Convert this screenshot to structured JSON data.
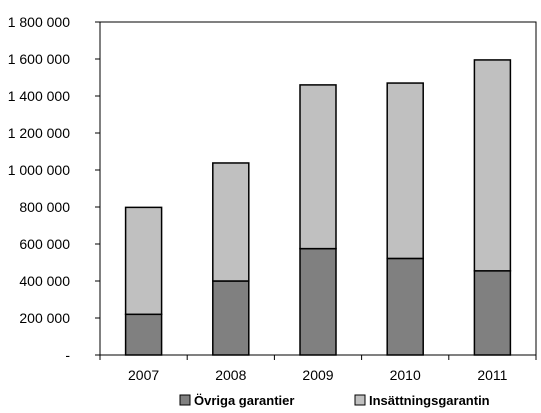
{
  "chart_data": {
    "type": "bar",
    "stacked": true,
    "categories": [
      "2007",
      "2008",
      "2009",
      "2010",
      "2011"
    ],
    "series": [
      {
        "name": "Övriga garantier",
        "values": [
          220000,
          400000,
          575000,
          522000,
          455000
        ],
        "color": "#808080"
      },
      {
        "name": "Insättningsgarantin",
        "values": [
          578000,
          638000,
          885000,
          948000,
          1140000
        ],
        "color": "#c0c0c0"
      }
    ],
    "ylim": [
      0,
      1800000
    ],
    "yticks": [
      {
        "value": 0,
        "label": "-"
      },
      {
        "value": 200000,
        "label": "200 000"
      },
      {
        "value": 400000,
        "label": "400 000"
      },
      {
        "value": 600000,
        "label": "600 000"
      },
      {
        "value": 800000,
        "label": "800 000"
      },
      {
        "value": 1000000,
        "label": "1 000 000"
      },
      {
        "value": 1200000,
        "label": "1 200 000"
      },
      {
        "value": 1400000,
        "label": "1 400 000"
      },
      {
        "value": 1600000,
        "label": "1 600 000"
      },
      {
        "value": 1800000,
        "label": "1 800 000"
      }
    ],
    "grid": false,
    "legend_position": "bottom"
  }
}
